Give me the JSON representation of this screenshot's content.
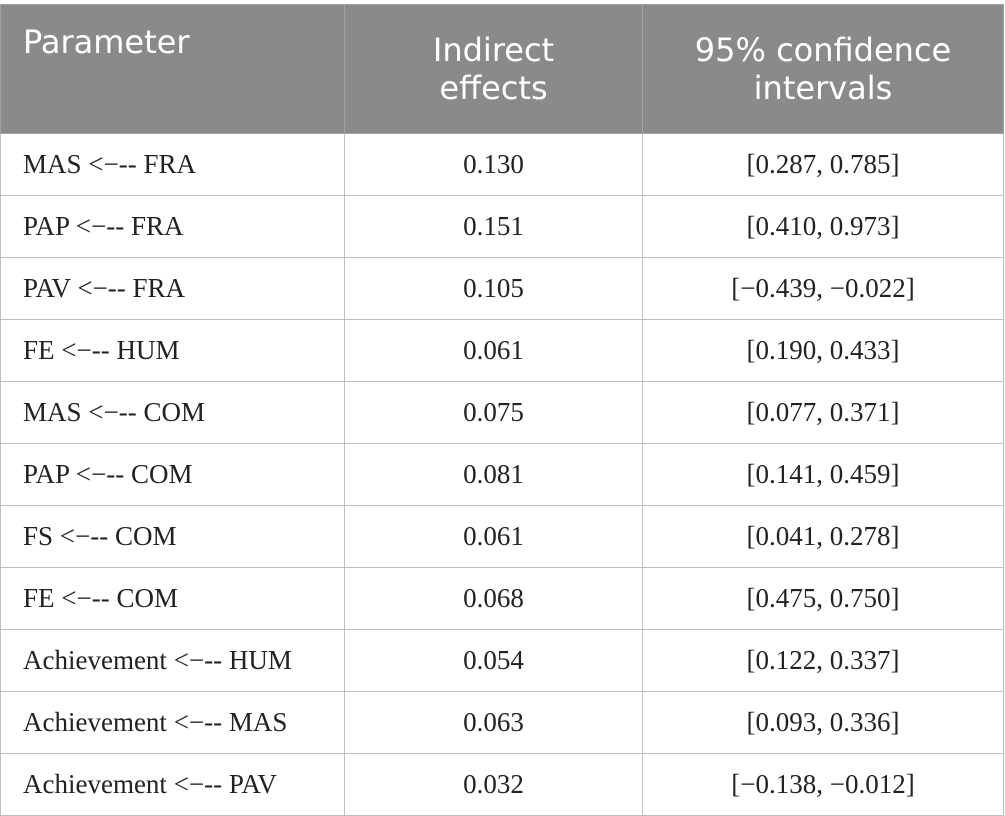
{
  "table": {
    "headers": {
      "parameter": "Parameter",
      "indirect_line1": "Indirect",
      "indirect_line2": "effects",
      "ci_line1": "95% confidence",
      "ci_line2": "intervals"
    },
    "rows": [
      {
        "parameter": "MAS <−-- FRA",
        "indirect": "0.130",
        "ci": "[0.287, 0.785]"
      },
      {
        "parameter": "PAP <−-- FRA",
        "indirect": "0.151",
        "ci": "[0.410, 0.973]"
      },
      {
        "parameter": "PAV <−-- FRA",
        "indirect": "0.105",
        "ci": "[−0.439, −0.022]"
      },
      {
        "parameter": "FE <−-- HUM",
        "indirect": "0.061",
        "ci": "[0.190, 0.433]"
      },
      {
        "parameter": "MAS <−-- COM",
        "indirect": "0.075",
        "ci": "[0.077, 0.371]"
      },
      {
        "parameter": "PAP <−-- COM",
        "indirect": "0.081",
        "ci": "[0.141, 0.459]"
      },
      {
        "parameter": "FS <−-- COM",
        "indirect": "0.061",
        "ci": "[0.041, 0.278]"
      },
      {
        "parameter": "FE <−-- COM",
        "indirect": "0.068",
        "ci": "[0.475, 0.750]"
      },
      {
        "parameter": "Achievement <−-- HUM",
        "indirect": "0.054",
        "ci": "[0.122, 0.337]"
      },
      {
        "parameter": "Achievement <−-- MAS",
        "indirect": "0.063",
        "ci": "[0.093, 0.336]"
      },
      {
        "parameter": "Achievement <−-- PAV",
        "indirect": "0.032",
        "ci": "[−0.138, −0.012]"
      }
    ]
  }
}
